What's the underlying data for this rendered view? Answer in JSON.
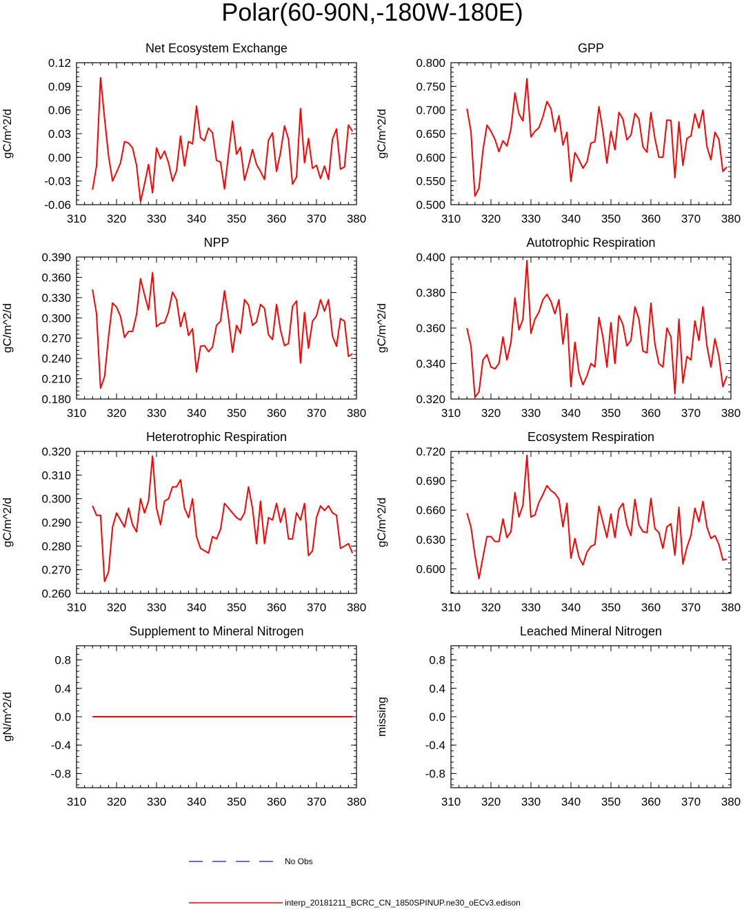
{
  "title": "Polar(60-90N,-180W-180E)",
  "colors": {
    "model": "#ff0000",
    "obs": "#3333ff",
    "axis": "#000000"
  },
  "legend": [
    {
      "label": "No Obs",
      "style": "dashed",
      "color": "#3333ff"
    },
    {
      "label": "interp_20181211_BCRC_CN_1850SPINUP.ne30_oECv3.edison",
      "style": "solid",
      "color": "#ff0000"
    }
  ],
  "chart_data": [
    {
      "type": "line",
      "title": "Net Ecosystem Exchange",
      "ylabel": "gC/m^2/d",
      "xlim": [
        310,
        380
      ],
      "ylim": [
        -0.06,
        0.12
      ],
      "xticks": [
        "310",
        "320",
        "330",
        "340",
        "350",
        "360",
        "370",
        "380"
      ],
      "yticks": [
        "-0.06",
        "-0.03",
        "0.00",
        "0.03",
        "0.06",
        "0.09",
        "0.12"
      ],
      "x": [
        314,
        315,
        316,
        317,
        318,
        319,
        320,
        321,
        322,
        323,
        324,
        325,
        326,
        327,
        328,
        329,
        330,
        331,
        332,
        333,
        334,
        335,
        336,
        337,
        338,
        339,
        340,
        341,
        342,
        343,
        344,
        345,
        346,
        347,
        348,
        349,
        350,
        351,
        352,
        353,
        354,
        355,
        356,
        357,
        358,
        359,
        360,
        361,
        362,
        363,
        364,
        365,
        366,
        367,
        368,
        369,
        370,
        371,
        372,
        373,
        374,
        375,
        376,
        377,
        378,
        379
      ],
      "series": [
        {
          "values": [
            -0.041,
            -0.011,
            0.101,
            0.05,
            0.002,
            -0.03,
            -0.019,
            -0.007,
            0.02,
            0.018,
            0.012,
            -0.01,
            -0.056,
            -0.034,
            -0.009,
            -0.045,
            0.012,
            -0.002,
            0.008,
            -0.007,
            -0.03,
            -0.017,
            0.027,
            -0.011,
            0.02,
            0.017,
            0.065,
            0.025,
            0.021,
            0.037,
            0.031,
            -0.004,
            -0.006,
            -0.04,
            0.004,
            0.046,
            0.004,
            0.013,
            -0.029,
            -0.011,
            0.01,
            -0.009,
            -0.018,
            -0.028,
            0.022,
            0.031,
            -0.018,
            0.006,
            0.04,
            0.023,
            -0.034,
            -0.025,
            0.062,
            -0.007,
            0.024,
            -0.014,
            -0.01,
            -0.027,
            -0.011,
            -0.028,
            0.023,
            0.036,
            -0.015,
            -0.012,
            0.041,
            0.033
          ]
        }
      ]
    },
    {
      "type": "line",
      "title": "GPP",
      "ylabel": "gC/m^2/d",
      "xlim": [
        310,
        380
      ],
      "ylim": [
        0.5,
        0.8
      ],
      "xticks": [
        "310",
        "320",
        "330",
        "340",
        "350",
        "360",
        "370",
        "380"
      ],
      "yticks": [
        "0.500",
        "0.550",
        "0.600",
        "0.650",
        "0.700",
        "0.750",
        "0.800"
      ],
      "x": [
        314,
        315,
        316,
        317,
        318,
        319,
        320,
        321,
        322,
        323,
        324,
        325,
        326,
        327,
        328,
        329,
        330,
        331,
        332,
        333,
        334,
        335,
        336,
        337,
        338,
        339,
        340,
        341,
        342,
        343,
        344,
        345,
        346,
        347,
        348,
        349,
        350,
        351,
        352,
        353,
        354,
        355,
        356,
        357,
        358,
        359,
        360,
        361,
        362,
        363,
        364,
        365,
        366,
        367,
        368,
        369,
        370,
        371,
        372,
        373,
        374,
        375,
        376,
        377,
        378,
        379
      ],
      "series": [
        {
          "values": [
            0.703,
            0.655,
            0.518,
            0.535,
            0.615,
            0.668,
            0.655,
            0.638,
            0.612,
            0.635,
            0.624,
            0.66,
            0.736,
            0.692,
            0.677,
            0.766,
            0.643,
            0.655,
            0.663,
            0.686,
            0.718,
            0.703,
            0.654,
            0.688,
            0.626,
            0.653,
            0.549,
            0.61,
            0.595,
            0.577,
            0.59,
            0.63,
            0.633,
            0.707,
            0.655,
            0.588,
            0.655,
            0.616,
            0.695,
            0.681,
            0.637,
            0.647,
            0.693,
            0.681,
            0.622,
            0.611,
            0.695,
            0.64,
            0.6,
            0.6,
            0.679,
            0.678,
            0.557,
            0.675,
            0.583,
            0.64,
            0.645,
            0.692,
            0.662,
            0.7,
            0.623,
            0.595,
            0.653,
            0.638,
            0.57,
            0.58
          ]
        }
      ]
    },
    {
      "type": "line",
      "title": "NPP",
      "ylabel": "gC/m^2/d",
      "xlim": [
        310,
        380
      ],
      "ylim": [
        0.18,
        0.39
      ],
      "xticks": [
        "310",
        "320",
        "330",
        "340",
        "350",
        "360",
        "370",
        "380"
      ],
      "yticks": [
        "0.180",
        "0.210",
        "0.240",
        "0.270",
        "0.300",
        "0.330",
        "0.360",
        "0.390"
      ],
      "x": [
        314,
        315,
        316,
        317,
        318,
        319,
        320,
        321,
        322,
        323,
        324,
        325,
        326,
        327,
        328,
        329,
        330,
        331,
        332,
        333,
        334,
        335,
        336,
        337,
        338,
        339,
        340,
        341,
        342,
        343,
        344,
        345,
        346,
        347,
        348,
        349,
        350,
        351,
        352,
        353,
        354,
        355,
        356,
        357,
        358,
        359,
        360,
        361,
        362,
        363,
        364,
        365,
        366,
        367,
        368,
        369,
        370,
        371,
        372,
        373,
        374,
        375,
        376,
        377,
        378,
        379
      ],
      "series": [
        {
          "values": [
            0.342,
            0.306,
            0.196,
            0.213,
            0.272,
            0.322,
            0.316,
            0.302,
            0.271,
            0.28,
            0.28,
            0.305,
            0.358,
            0.334,
            0.312,
            0.367,
            0.287,
            0.292,
            0.293,
            0.309,
            0.338,
            0.327,
            0.287,
            0.308,
            0.274,
            0.284,
            0.22,
            0.258,
            0.259,
            0.25,
            0.257,
            0.289,
            0.295,
            0.34,
            0.3,
            0.249,
            0.289,
            0.277,
            0.327,
            0.319,
            0.289,
            0.294,
            0.32,
            0.314,
            0.275,
            0.268,
            0.32,
            0.282,
            0.259,
            0.262,
            0.317,
            0.325,
            0.233,
            0.308,
            0.255,
            0.295,
            0.303,
            0.327,
            0.31,
            0.327,
            0.273,
            0.258,
            0.299,
            0.295,
            0.243,
            0.247
          ]
        }
      ]
    },
    {
      "type": "line",
      "title": "Autotrophic Respiration",
      "ylabel": "gC/m^2/d",
      "xlim": [
        310,
        380
      ],
      "ylim": [
        0.32,
        0.4
      ],
      "xticks": [
        "310",
        "320",
        "330",
        "340",
        "350",
        "360",
        "370",
        "380"
      ],
      "yticks": [
        "0.320",
        "0.340",
        "0.360",
        "0.380",
        "0.400"
      ],
      "x": [
        314,
        315,
        316,
        317,
        318,
        319,
        320,
        321,
        322,
        323,
        324,
        325,
        326,
        327,
        328,
        329,
        330,
        331,
        332,
        333,
        334,
        335,
        336,
        337,
        338,
        339,
        340,
        341,
        342,
        343,
        344,
        345,
        346,
        347,
        348,
        349,
        350,
        351,
        352,
        353,
        354,
        355,
        356,
        357,
        358,
        359,
        360,
        361,
        362,
        363,
        364,
        365,
        366,
        367,
        368,
        369,
        370,
        371,
        372,
        373,
        374,
        375,
        376,
        377,
        378,
        379
      ],
      "series": [
        {
          "values": [
            0.36,
            0.35,
            0.321,
            0.324,
            0.342,
            0.345,
            0.338,
            0.337,
            0.34,
            0.355,
            0.342,
            0.352,
            0.377,
            0.359,
            0.365,
            0.398,
            0.357,
            0.365,
            0.369,
            0.376,
            0.379,
            0.375,
            0.368,
            0.376,
            0.351,
            0.368,
            0.327,
            0.352,
            0.335,
            0.328,
            0.333,
            0.34,
            0.338,
            0.366,
            0.355,
            0.338,
            0.363,
            0.34,
            0.367,
            0.362,
            0.35,
            0.353,
            0.372,
            0.365,
            0.347,
            0.346,
            0.374,
            0.351,
            0.34,
            0.338,
            0.36,
            0.355,
            0.323,
            0.365,
            0.329,
            0.344,
            0.342,
            0.364,
            0.353,
            0.372,
            0.35,
            0.338,
            0.354,
            0.344,
            0.327,
            0.333
          ]
        }
      ]
    },
    {
      "type": "line",
      "title": "Heterotrophic Respiration",
      "ylabel": "gC/m^2/d",
      "xlim": [
        310,
        380
      ],
      "ylim": [
        0.26,
        0.32
      ],
      "xticks": [
        "310",
        "320",
        "330",
        "340",
        "350",
        "360",
        "370",
        "380"
      ],
      "yticks": [
        "0.260",
        "0.270",
        "0.280",
        "0.290",
        "0.300",
        "0.310",
        "0.320"
      ],
      "x": [
        314,
        315,
        316,
        317,
        318,
        319,
        320,
        321,
        322,
        323,
        324,
        325,
        326,
        327,
        328,
        329,
        330,
        331,
        332,
        333,
        334,
        335,
        336,
        337,
        338,
        339,
        340,
        341,
        342,
        343,
        344,
        345,
        346,
        347,
        348,
        349,
        350,
        351,
        352,
        353,
        354,
        355,
        356,
        357,
        358,
        359,
        360,
        361,
        362,
        363,
        364,
        365,
        366,
        367,
        368,
        369,
        370,
        371,
        372,
        373,
        374,
        375,
        376,
        377,
        378,
        379
      ],
      "series": [
        {
          "values": [
            0.297,
            0.293,
            0.293,
            0.265,
            0.269,
            0.288,
            0.294,
            0.291,
            0.288,
            0.296,
            0.289,
            0.286,
            0.3,
            0.294,
            0.299,
            0.318,
            0.296,
            0.289,
            0.299,
            0.3,
            0.305,
            0.305,
            0.308,
            0.296,
            0.292,
            0.3,
            0.284,
            0.279,
            0.278,
            0.277,
            0.284,
            0.283,
            0.287,
            0.298,
            0.296,
            0.294,
            0.292,
            0.291,
            0.294,
            0.305,
            0.296,
            0.281,
            0.299,
            0.281,
            0.292,
            0.291,
            0.298,
            0.29,
            0.296,
            0.283,
            0.283,
            0.294,
            0.291,
            0.298,
            0.276,
            0.278,
            0.292,
            0.297,
            0.295,
            0.297,
            0.294,
            0.293,
            0.279,
            0.28,
            0.281,
            0.277
          ]
        }
      ]
    },
    {
      "type": "line",
      "title": "Ecosystem Respiration",
      "ylabel": "gC/m^2/d",
      "xlim": [
        310,
        380
      ],
      "ylim": [
        0.575,
        0.72
      ],
      "xticks": [
        "310",
        "320",
        "330",
        "340",
        "350",
        "360",
        "370",
        "380"
      ],
      "yticks": [
        "0.600",
        "0.630",
        "0.660",
        "0.690",
        "0.720"
      ],
      "x": [
        314,
        315,
        316,
        317,
        318,
        319,
        320,
        321,
        322,
        323,
        324,
        325,
        326,
        327,
        328,
        329,
        330,
        331,
        332,
        333,
        334,
        335,
        336,
        337,
        338,
        339,
        340,
        341,
        342,
        343,
        344,
        345,
        346,
        347,
        348,
        349,
        350,
        351,
        352,
        353,
        354,
        355,
        356,
        357,
        358,
        359,
        360,
        361,
        362,
        363,
        364,
        365,
        366,
        367,
        368,
        369,
        370,
        371,
        372,
        373,
        374,
        375,
        376,
        377,
        378,
        379
      ],
      "series": [
        {
          "values": [
            0.657,
            0.643,
            0.614,
            0.59,
            0.612,
            0.633,
            0.633,
            0.628,
            0.628,
            0.651,
            0.632,
            0.638,
            0.678,
            0.653,
            0.665,
            0.716,
            0.653,
            0.655,
            0.668,
            0.676,
            0.685,
            0.68,
            0.677,
            0.671,
            0.643,
            0.667,
            0.611,
            0.631,
            0.612,
            0.604,
            0.617,
            0.623,
            0.625,
            0.664,
            0.648,
            0.632,
            0.656,
            0.632,
            0.661,
            0.667,
            0.645,
            0.634,
            0.671,
            0.645,
            0.638,
            0.637,
            0.672,
            0.641,
            0.637,
            0.621,
            0.643,
            0.646,
            0.614,
            0.663,
            0.605,
            0.622,
            0.634,
            0.662,
            0.648,
            0.669,
            0.643,
            0.631,
            0.634,
            0.625,
            0.609,
            0.61
          ]
        }
      ]
    },
    {
      "type": "line",
      "title": "Supplement to Mineral Nitrogen",
      "ylabel": "gN/m^2/d",
      "xlim": [
        310,
        380
      ],
      "ylim": [
        -1.0,
        1.0
      ],
      "xticks": [
        "310",
        "320",
        "330",
        "340",
        "350",
        "360",
        "370",
        "380"
      ],
      "yticks": [
        "-0.8",
        "-0.4",
        "0.0",
        "0.4",
        "0.8"
      ],
      "x": [
        314,
        379
      ],
      "series": [
        {
          "values": [
            0.0,
            0.0
          ]
        }
      ]
    },
    {
      "type": "line",
      "title": "Leached Mineral Nitrogen",
      "ylabel": "missing",
      "xlim": [
        310,
        380
      ],
      "ylim": [
        -1.0,
        1.0
      ],
      "xticks": [
        "310",
        "320",
        "330",
        "340",
        "350",
        "360",
        "370",
        "380"
      ],
      "yticks": [
        "-0.8",
        "-0.4",
        "0.0",
        "0.4",
        "0.8"
      ],
      "x": [],
      "series": []
    }
  ]
}
